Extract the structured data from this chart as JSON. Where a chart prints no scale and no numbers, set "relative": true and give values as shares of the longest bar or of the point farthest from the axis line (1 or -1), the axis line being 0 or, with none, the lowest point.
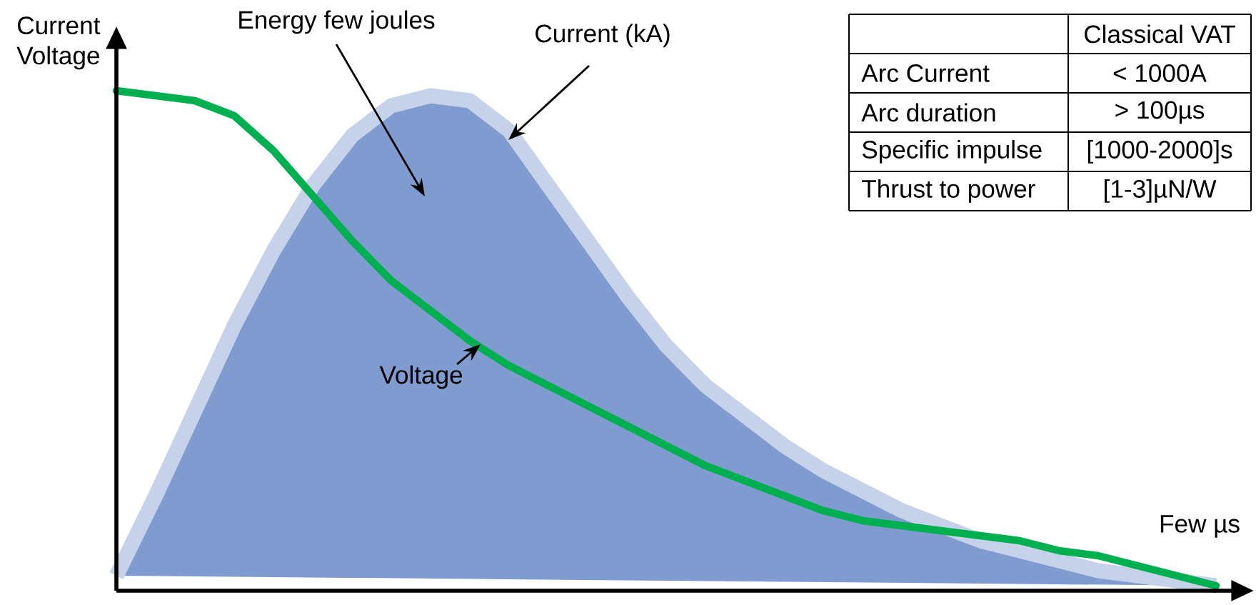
{
  "chart_data": [
    {
      "type": "line",
      "relative": true,
      "ylabel": "Current Voltage",
      "xlabel": "Few µs",
      "categories": [
        null,
        null,
        null,
        null,
        null,
        null,
        null,
        null,
        null,
        null,
        null,
        null,
        null,
        null,
        null,
        null,
        null,
        null,
        null,
        null,
        null,
        null,
        null,
        null,
        null,
        null,
        null,
        null,
        null
      ],
      "series": [
        {
          "name": "Current (kA)",
          "type": "area",
          "color": "#7f9bd0",
          "values": [
            0.03,
            0.19,
            0.36,
            0.53,
            0.68,
            0.81,
            0.91,
            0.97,
            0.99,
            0.98,
            0.92,
            0.81,
            0.7,
            0.59,
            0.49,
            0.41,
            0.35,
            0.29,
            0.24,
            0.2,
            0.16,
            0.13,
            0.1,
            0.08,
            0.06,
            0.04,
            0.03,
            0.02,
            0.01
          ]
        },
        {
          "name": "Voltage",
          "type": "line",
          "color": "#00b050",
          "values": [
            1.0,
            0.99,
            0.98,
            0.95,
            0.88,
            0.79,
            0.7,
            0.62,
            0.56,
            0.5,
            0.45,
            0.41,
            0.37,
            0.33,
            0.29,
            0.25,
            0.22,
            0.19,
            0.16,
            0.14,
            0.13,
            0.12,
            0.11,
            0.1,
            0.08,
            0.07,
            0.05,
            0.03,
            0.01
          ]
        }
      ],
      "annotations": [
        "Energy few joules"
      ]
    },
    {
      "type": "other",
      "title": "Classical VAT",
      "annotations": [
        "Arc Current",
        "< 1000A",
        "Arc duration",
        "> 100µs",
        "Specific impulse",
        "[1000-2000]s",
        "Thrust to power",
        "[1-3]µN/W"
      ]
    }
  ]
}
